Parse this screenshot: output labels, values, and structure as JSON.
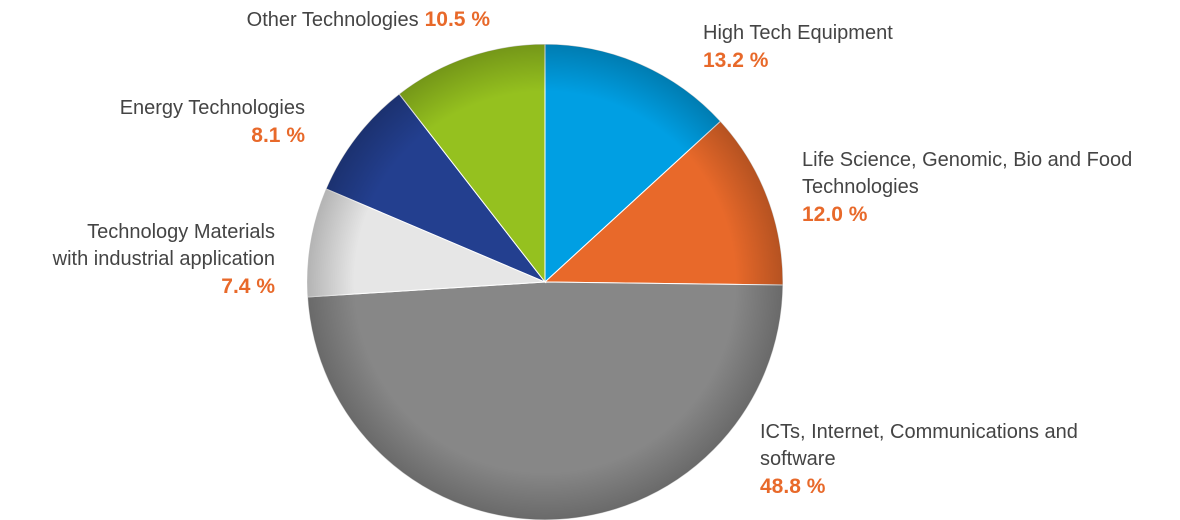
{
  "chart_data": {
    "type": "pie",
    "categories": [
      "High Tech Equipment",
      "Life Science, Genomic, Bio and Food\nTechnologies",
      "ICTs, Internet, Communications and\nsoftware",
      "Technology Materials\nwith industrial application",
      "Energy Technologies",
      "Other Technologies"
    ],
    "values": [
      13.2,
      12.0,
      48.8,
      7.4,
      8.1,
      10.5
    ],
    "value_labels": [
      "13.2 %",
      "12.0 %",
      "48.8 %",
      "7.4 %",
      "8.1 %",
      "10.5 %"
    ],
    "colors": [
      "#009fe3",
      "#e8692a",
      "#878787",
      "#e6e6e6",
      "#233f8f",
      "#95c11f"
    ]
  }
}
